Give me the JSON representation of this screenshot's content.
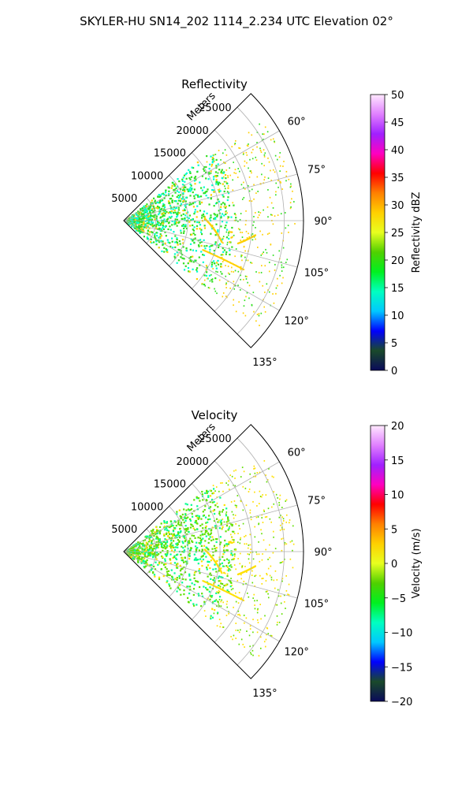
{
  "title": "SKYLER-HU  SN14_202  1114_2.234 UTC Elevation 02°",
  "chart_data": [
    {
      "type": "polar-sector",
      "title": "Reflectivity",
      "radial_label": "Meters",
      "radial_ticks": [
        "5000",
        "10000",
        "15000",
        "20000",
        "25000"
      ],
      "radial_range": [
        0,
        28000
      ],
      "angle_ticks": [
        "60°",
        "75°",
        "90°",
        "105°",
        "120°",
        "135°"
      ],
      "angle_range_deg": [
        45,
        135
      ],
      "grid": true,
      "colorbar": {
        "label": "Reflectivity dBZ",
        "range": [
          0,
          50
        ],
        "ticks": [
          "0",
          "5",
          "10",
          "15",
          "20",
          "25",
          "30",
          "35",
          "40",
          "45",
          "50"
        ],
        "stops": [
          "#0a0a5a",
          "#1a4a2a",
          "#0000ff",
          "#00c8ff",
          "#00ffc0",
          "#00f020",
          "#50d000",
          "#e8ff20",
          "#ffd000",
          "#ff8000",
          "#ff0000",
          "#ff00c0",
          "#a020ff",
          "#e080ff",
          "#ffe8ff"
        ]
      },
      "field_summary": "Returns mostly 10–22 dBZ (cyan/green), concentrated near radar out to ~15000 m; scattered yellow/orange 25–35 dBZ lines near 95°–115° at 12000–22000 m",
      "color_low": "#00ffd0",
      "color_mid": "#30e020",
      "color_high": "#ffd000"
    },
    {
      "type": "polar-sector",
      "title": "Velocity",
      "radial_label": "Meters",
      "radial_ticks": [
        "5000",
        "10000",
        "15000",
        "20000",
        "25000"
      ],
      "radial_range": [
        0,
        28000
      ],
      "angle_ticks": [
        "60°",
        "75°",
        "90°",
        "105°",
        "120°",
        "135°"
      ],
      "angle_range_deg": [
        45,
        135
      ],
      "grid": true,
      "colorbar": {
        "label": "Velocity (m/s)",
        "range": [
          -20,
          20
        ],
        "ticks": [
          "−20",
          "−15",
          "−10",
          "−5",
          "0",
          "5",
          "10",
          "15",
          "20"
        ],
        "stops": [
          "#0a0a5a",
          "#1a4a2a",
          "#0000ff",
          "#00c8ff",
          "#00ffc0",
          "#00f020",
          "#50d000",
          "#e8ff20",
          "#ffd000",
          "#ff8000",
          "#ff0000",
          "#ff00c0",
          "#a020ff",
          "#e080ff",
          "#ffe8ff"
        ]
      },
      "field_summary": "Mostly −12 to −4 m/s (green/cyan) near radar; outer scattered returns −2 to +5 m/s (yellow)",
      "color_low": "#00ff90",
      "color_mid": "#60e000",
      "color_high": "#ffe000"
    }
  ]
}
